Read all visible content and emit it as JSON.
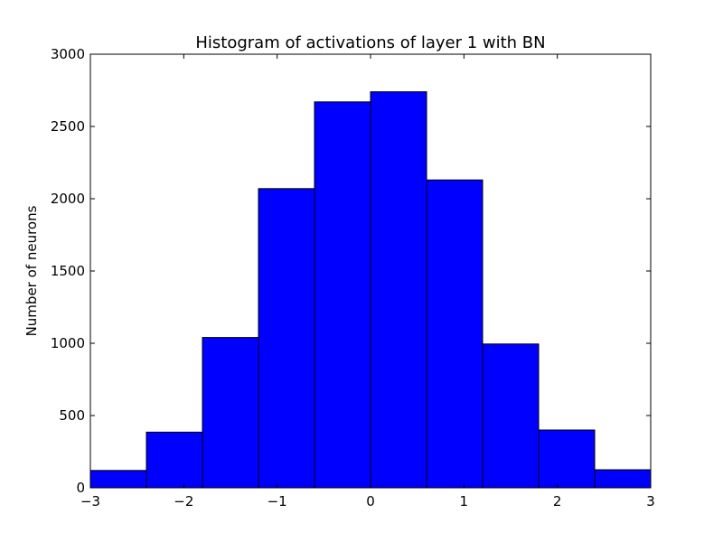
{
  "chart_data": {
    "type": "bar",
    "title": "Histogram of activations of layer 1  with BN",
    "xlabel": "",
    "ylabel": "Number of neurons",
    "xlim": [
      -3,
      3
    ],
    "ylim": [
      0,
      3000
    ],
    "grid": false,
    "bar_color": "#0000ff",
    "edge_color": "#000000",
    "bins": [
      {
        "x0": -3.0,
        "x1": -2.4,
        "value": 120
      },
      {
        "x0": -2.4,
        "x1": -1.8,
        "value": 385
      },
      {
        "x0": -1.8,
        "x1": -1.2,
        "value": 1040
      },
      {
        "x0": -1.2,
        "x1": -0.6,
        "value": 2070
      },
      {
        "x0": -0.6,
        "x1": 0.0,
        "value": 2670
      },
      {
        "x0": 0.0,
        "x1": 0.6,
        "value": 2740
      },
      {
        "x0": 0.6,
        "x1": 1.2,
        "value": 2130
      },
      {
        "x0": 1.2,
        "x1": 1.8,
        "value": 995
      },
      {
        "x0": 1.8,
        "x1": 2.4,
        "value": 400
      },
      {
        "x0": 2.4,
        "x1": 3.0,
        "value": 125
      }
    ],
    "x_ticks": [
      {
        "value": -3,
        "label": "−3"
      },
      {
        "value": -2,
        "label": "−2"
      },
      {
        "value": -1,
        "label": "−1"
      },
      {
        "value": 0,
        "label": "0"
      },
      {
        "value": 1,
        "label": "1"
      },
      {
        "value": 2,
        "label": "2"
      },
      {
        "value": 3,
        "label": "3"
      }
    ],
    "y_ticks": [
      {
        "value": 0,
        "label": "0"
      },
      {
        "value": 500,
        "label": "500"
      },
      {
        "value": 1000,
        "label": "1000"
      },
      {
        "value": 1500,
        "label": "1500"
      },
      {
        "value": 2000,
        "label": "2000"
      },
      {
        "value": 2500,
        "label": "2500"
      },
      {
        "value": 3000,
        "label": "3000"
      }
    ]
  }
}
